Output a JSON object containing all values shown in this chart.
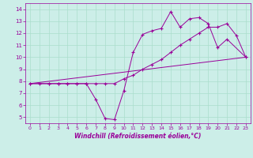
{
  "xlabel": "Windchill (Refroidissement éolien,°C)",
  "bg_color": "#cceee8",
  "line_color": "#990099",
  "grid_color": "#aaddcc",
  "xlim": [
    -0.5,
    23.5
  ],
  "ylim": [
    4.5,
    14.5
  ],
  "xticks": [
    0,
    1,
    2,
    3,
    4,
    5,
    6,
    7,
    8,
    9,
    10,
    11,
    12,
    13,
    14,
    15,
    16,
    17,
    18,
    19,
    20,
    21,
    22,
    23
  ],
  "yticks": [
    5,
    6,
    7,
    8,
    9,
    10,
    11,
    12,
    13,
    14
  ],
  "line1_x": [
    0,
    1,
    2,
    3,
    4,
    5,
    6,
    7,
    8,
    9,
    10,
    11,
    12,
    13,
    14,
    15,
    16,
    17,
    18,
    19,
    20,
    21,
    22,
    23
  ],
  "line1_y": [
    7.8,
    7.8,
    7.8,
    7.8,
    7.8,
    7.8,
    7.8,
    7.8,
    7.8,
    7.8,
    8.2,
    8.5,
    9.0,
    9.4,
    9.8,
    10.4,
    11.0,
    11.5,
    12.0,
    12.5,
    12.5,
    12.8,
    11.8,
    10.0
  ],
  "line2_x": [
    0,
    2,
    3,
    4,
    5,
    6,
    7,
    8,
    9,
    10,
    11,
    12,
    13,
    14,
    15,
    16,
    17,
    18,
    19,
    20,
    21,
    23
  ],
  "line2_y": [
    7.8,
    7.8,
    7.8,
    7.8,
    7.8,
    7.8,
    6.5,
    4.9,
    4.8,
    7.2,
    10.4,
    11.9,
    12.2,
    12.4,
    13.8,
    12.5,
    13.2,
    13.3,
    12.8,
    10.8,
    11.5,
    10.0
  ],
  "line3_x": [
    0,
    23
  ],
  "line3_y": [
    7.8,
    10.0
  ]
}
